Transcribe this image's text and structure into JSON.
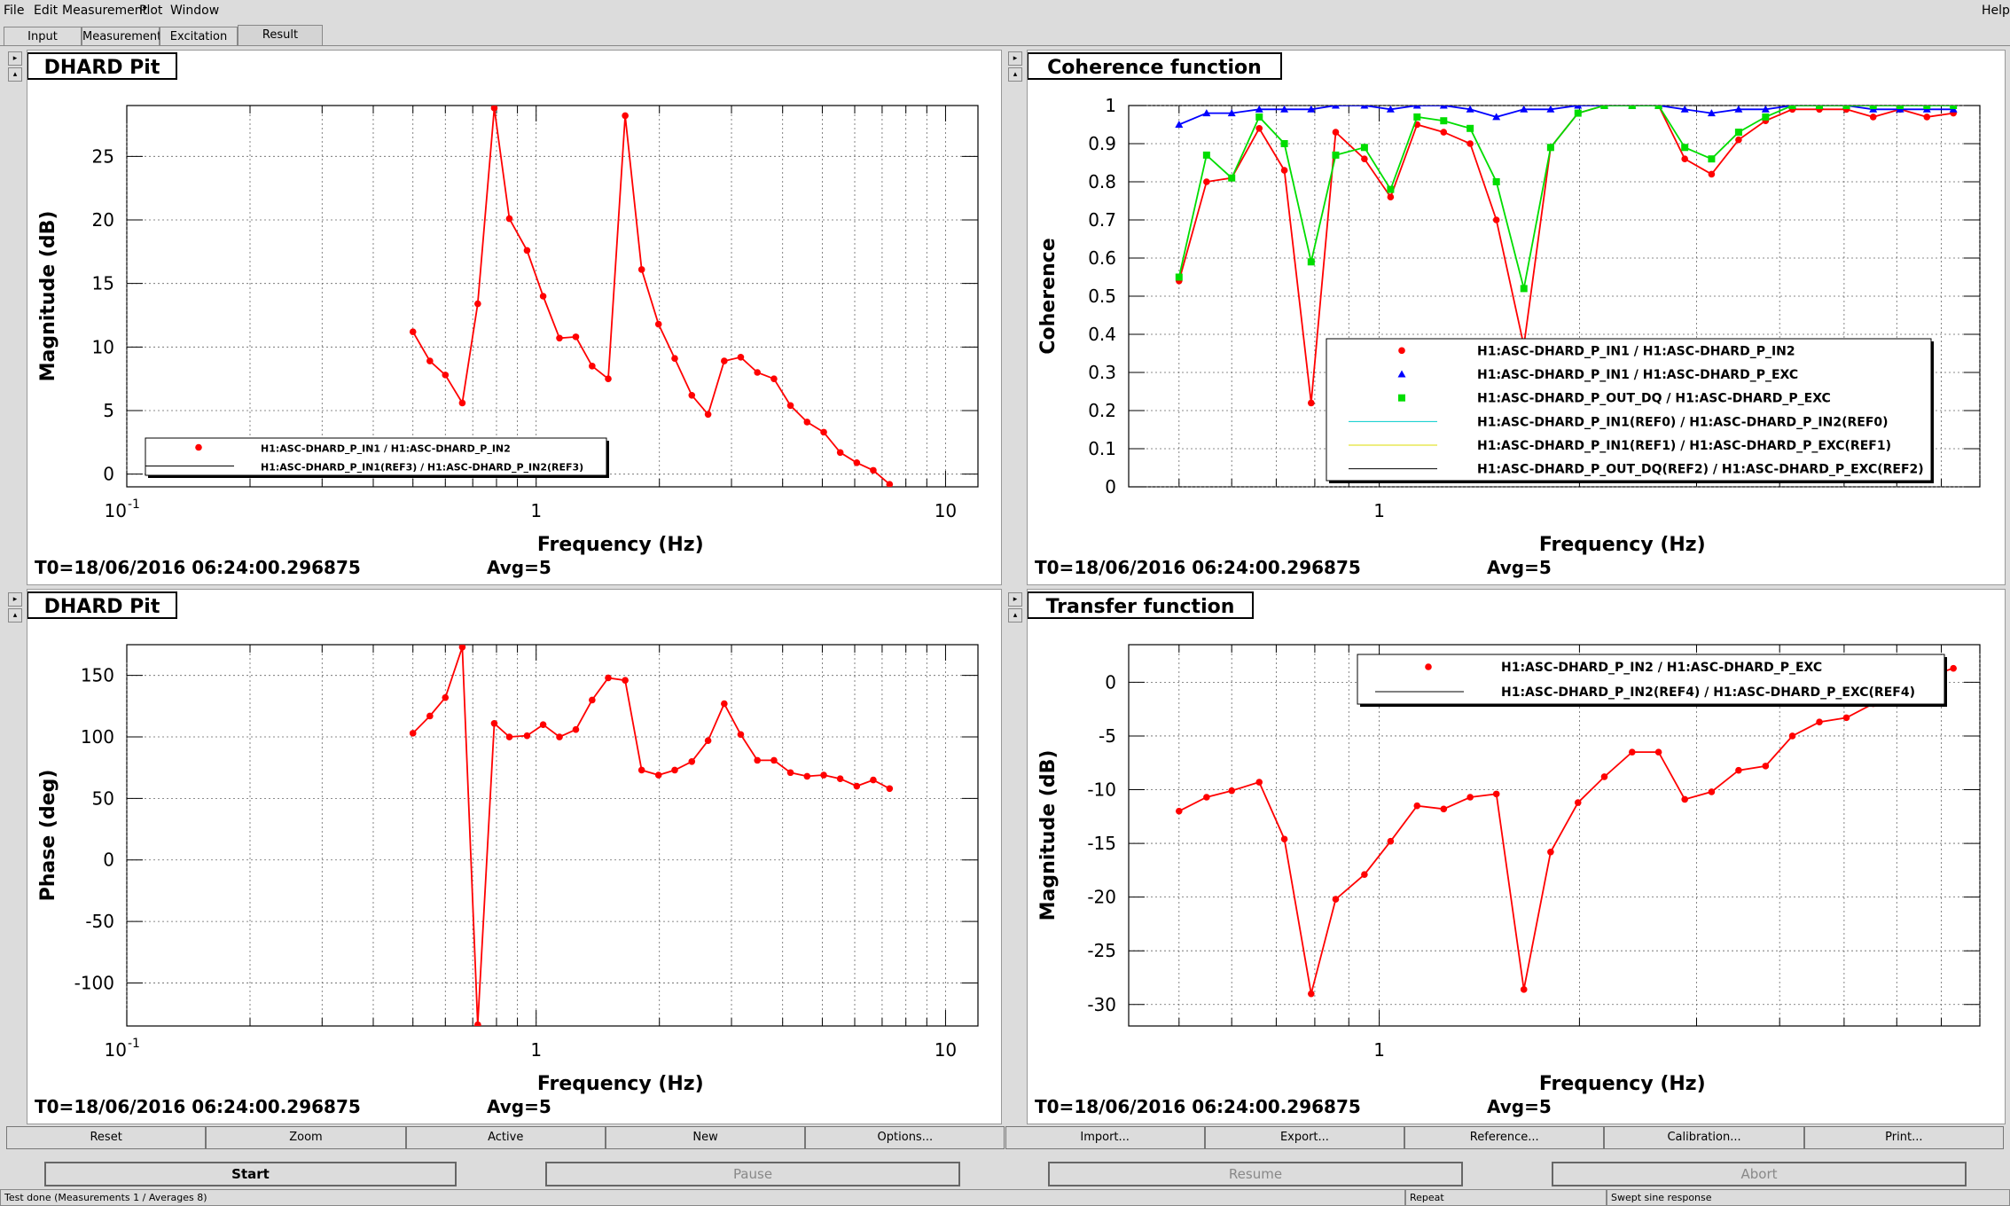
{
  "menu": {
    "file": "File",
    "edit": "Edit",
    "measurement": "Measurement",
    "plot": "Plot",
    "window": "Window",
    "help": "Help"
  },
  "tabs": [
    "Input",
    "Measurement",
    "Excitation",
    "Result"
  ],
  "footer_t0": "T0=18/06/2016 06:24:00.296875",
  "footer_avg": "Avg=5",
  "xlabel": "Frequency (Hz)",
  "panels": [
    {
      "title": "DHARD Pit",
      "ylabel": "Magnitude (dB)"
    },
    {
      "title": "Coherence function",
      "ylabel": "Coherence"
    },
    {
      "title": "DHARD Pit",
      "ylabel": "Phase (deg)"
    },
    {
      "title": "Transfer function",
      "ylabel": "Magnitude (dB)"
    }
  ],
  "chart_data": [
    {
      "type": "line",
      "title": "DHARD Pit",
      "xlabel": "Frequency (Hz)",
      "ylabel": "Magnitude (dB)",
      "xscale": "log",
      "xlim": [
        0.1,
        12
      ],
      "ylim": [
        -1,
        29
      ],
      "x_ticks": [
        {
          "v": 0.1,
          "t": "10^-1"
        },
        {
          "v": 1,
          "t": "1"
        },
        {
          "v": 10,
          "t": "10"
        }
      ],
      "y_ticks": [
        0,
        5,
        10,
        15,
        20,
        25
      ],
      "legend": [
        "H1:ASC-DHARD_P_IN1 / H1:ASC-DHARD_P_IN2",
        "H1:ASC-DHARD_P_IN1(REF3) / H1:ASC-DHARD_P_IN2(REF3)"
      ],
      "series": [
        {
          "name": "H1:ASC-DHARD_P_IN1 / H1:ASC-DHARD_P_IN2",
          "color": "#ff0000",
          "marker": "circle",
          "x": [
            0.5,
            0.55,
            0.6,
            0.66,
            0.72,
            0.79,
            0.86,
            0.95,
            1.04,
            1.14,
            1.25,
            1.37,
            1.5,
            1.65,
            1.81,
            1.99,
            2.18,
            2.4,
            2.63,
            2.88,
            3.16,
            3.47,
            3.81,
            4.18,
            4.59,
            5.04,
            5.53,
            6.07,
            6.66,
            7.3
          ],
          "y": [
            11.2,
            8.9,
            7.8,
            5.6,
            13.4,
            28.8,
            20.1,
            17.6,
            14,
            10.7,
            10.8,
            8.5,
            7.5,
            28.2,
            16.1,
            11.8,
            9.1,
            6.2,
            4.7,
            8.9,
            9.2,
            8,
            7.5,
            5.4,
            4.1,
            3.3,
            1.7,
            0.9,
            0.3,
            -0.8
          ]
        }
      ]
    },
    {
      "type": "line",
      "title": "Coherence function",
      "xlabel": "Frequency (Hz)",
      "ylabel": "Coherence",
      "xscale": "log",
      "xlim": [
        0.42,
        8
      ],
      "ylim": [
        0,
        1
      ],
      "x_ticks": [
        {
          "v": 1,
          "t": "1"
        }
      ],
      "y_ticks": [
        0,
        0.1,
        0.2,
        0.3,
        0.4,
        0.5,
        0.6,
        0.7,
        0.8,
        0.9,
        1
      ],
      "legend": [
        "H1:ASC-DHARD_P_IN1 / H1:ASC-DHARD_P_IN2",
        "H1:ASC-DHARD_P_IN1 / H1:ASC-DHARD_P_EXC",
        "H1:ASC-DHARD_P_OUT_DQ / H1:ASC-DHARD_P_EXC",
        "H1:ASC-DHARD_P_IN1(REF0) / H1:ASC-DHARD_P_IN2(REF0)",
        "H1:ASC-DHARD_P_IN1(REF1) / H1:ASC-DHARD_P_EXC(REF1)",
        "H1:ASC-DHARD_P_OUT_DQ(REF2) / H1:ASC-DHARD_P_EXC(REF2)"
      ],
      "series": [
        {
          "name": "H1:ASC-DHARD_P_IN1 / H1:ASC-DHARD_P_IN2",
          "color": "#ff0000",
          "marker": "circle",
          "x": [
            0.5,
            0.55,
            0.6,
            0.66,
            0.72,
            0.79,
            0.86,
            0.95,
            1.04,
            1.14,
            1.25,
            1.37,
            1.5,
            1.65,
            1.81,
            1.99,
            2.18,
            2.4,
            2.63,
            2.88,
            3.16,
            3.47,
            3.81,
            4.18,
            4.59,
            5.04,
            5.53,
            6.07,
            6.66,
            7.3
          ],
          "y": [
            0.54,
            0.8,
            0.81,
            0.94,
            0.83,
            0.22,
            0.93,
            0.86,
            0.76,
            0.95,
            0.93,
            0.9,
            0.7,
            0.37,
            0.89,
            0.98,
            1,
            1,
            1,
            0.86,
            0.82,
            0.91,
            0.96,
            0.99,
            0.99,
            0.99,
            0.97,
            0.99,
            0.97,
            0.98
          ]
        },
        {
          "name": "H1:ASC-DHARD_P_IN1 / H1:ASC-DHARD_P_EXC",
          "color": "#0000ff",
          "marker": "triangle",
          "x": [
            0.5,
            0.55,
            0.6,
            0.66,
            0.72,
            0.79,
            0.86,
            0.95,
            1.04,
            1.14,
            1.25,
            1.37,
            1.5,
            1.65,
            1.81,
            1.99,
            2.18,
            2.4,
            2.63,
            2.88,
            3.16,
            3.47,
            3.81,
            4.18,
            4.59,
            5.04,
            5.53,
            6.07,
            6.66,
            7.3
          ],
          "y": [
            0.95,
            0.98,
            0.98,
            0.99,
            0.99,
            0.99,
            1,
            1,
            0.99,
            1,
            1,
            0.99,
            0.97,
            0.99,
            0.99,
            1,
            1,
            1,
            1,
            0.99,
            0.98,
            0.99,
            0.99,
            1,
            1,
            1,
            0.99,
            0.99,
            0.99,
            0.99
          ]
        },
        {
          "name": "H1:ASC-DHARD_P_OUT_DQ / H1:ASC-DHARD_P_EXC",
          "color": "#00dd00",
          "marker": "square",
          "x": [
            0.5,
            0.55,
            0.6,
            0.66,
            0.72,
            0.79,
            0.86,
            0.95,
            1.04,
            1.14,
            1.25,
            1.37,
            1.5,
            1.65,
            1.81,
            1.99,
            2.18,
            2.4,
            2.63,
            2.88,
            3.16,
            3.47,
            3.81,
            4.18,
            4.59,
            5.04,
            5.53,
            6.07,
            6.66,
            7.3
          ],
          "y": [
            0.55,
            0.87,
            0.81,
            0.97,
            0.9,
            0.59,
            0.87,
            0.89,
            0.78,
            0.97,
            0.96,
            0.94,
            0.8,
            0.52,
            0.89,
            0.98,
            1,
            1,
            1,
            0.89,
            0.86,
            0.93,
            0.97,
            1,
            1,
            1,
            1,
            1,
            1,
            1
          ]
        }
      ]
    },
    {
      "type": "line",
      "title": "DHARD Pit",
      "xlabel": "Frequency (Hz)",
      "ylabel": "Phase (deg)",
      "xscale": "log",
      "xlim": [
        0.1,
        12
      ],
      "ylim": [
        -135,
        175
      ],
      "x_ticks": [
        {
          "v": 0.1,
          "t": "10^-1"
        },
        {
          "v": 1,
          "t": "1"
        },
        {
          "v": 10,
          "t": "10"
        }
      ],
      "y_ticks": [
        -100,
        -50,
        0,
        50,
        100,
        150
      ],
      "series": [
        {
          "name": "",
          "color": "#ff0000",
          "marker": "circle",
          "x": [
            0.5,
            0.55,
            0.6,
            0.66,
            0.72,
            0.79,
            0.86,
            0.95,
            1.04,
            1.14,
            1.25,
            1.37,
            1.5,
            1.65,
            1.81,
            1.99,
            2.18,
            2.4,
            2.63,
            2.88,
            3.16,
            3.47,
            3.81,
            4.18,
            4.59,
            5.04,
            5.53,
            6.07,
            6.66,
            7.3
          ],
          "y": [
            103,
            117,
            132,
            173,
            -134,
            111,
            100,
            101,
            110,
            100,
            106,
            130,
            148,
            146,
            73,
            69,
            73,
            80,
            97,
            127,
            102,
            81,
            81,
            71,
            68,
            69,
            66,
            60,
            65,
            58
          ]
        }
      ]
    },
    {
      "type": "line",
      "title": "Transfer function",
      "xlabel": "Frequency (Hz)",
      "ylabel": "Magnitude (dB)",
      "xscale": "log",
      "xlim": [
        0.42,
        8
      ],
      "ylim": [
        -32,
        3.5
      ],
      "x_ticks": [
        {
          "v": 1,
          "t": "1"
        }
      ],
      "y_ticks": [
        -30,
        -25,
        -20,
        -15,
        -10,
        -5,
        0
      ],
      "legend": [
        "H1:ASC-DHARD_P_IN2 / H1:ASC-DHARD_P_EXC",
        "H1:ASC-DHARD_P_IN2(REF4) / H1:ASC-DHARD_P_EXC(REF4)"
      ],
      "series": [
        {
          "name": "H1:ASC-DHARD_P_IN2 / H1:ASC-DHARD_P_EXC",
          "color": "#ff0000",
          "marker": "circle",
          "x": [
            0.5,
            0.55,
            0.6,
            0.66,
            0.72,
            0.79,
            0.86,
            0.95,
            1.04,
            1.14,
            1.25,
            1.37,
            1.5,
            1.65,
            1.81,
            1.99,
            2.18,
            2.4,
            2.63,
            2.88,
            3.16,
            3.47,
            3.81,
            4.18,
            4.59,
            5.04,
            5.53,
            6.07,
            6.66,
            7.3
          ],
          "y": [
            -12,
            -10.7,
            -10.1,
            -9.3,
            -14.6,
            -29,
            -20.2,
            -17.9,
            -14.8,
            -11.5,
            -11.8,
            -10.7,
            -10.4,
            -28.6,
            -15.8,
            -11.2,
            -8.8,
            -6.5,
            -6.5,
            -10.9,
            -10.2,
            -8.2,
            -7.8,
            -5,
            -3.7,
            -3.3,
            -2,
            -0.5,
            0.5,
            1.3
          ]
        }
      ]
    }
  ],
  "buttons": [
    "Reset",
    "Zoom",
    "Active",
    "New",
    "Options...",
    "Import...",
    "Export...",
    "Reference...",
    "Calibration...",
    "Print..."
  ],
  "bigbuttons": [
    "Start",
    "Pause",
    "Resume",
    "Abort"
  ],
  "status": {
    "left": "Test done (Measurements 1 / Averages 8)",
    "mid": "Repeat",
    "right": "Swept sine response"
  }
}
